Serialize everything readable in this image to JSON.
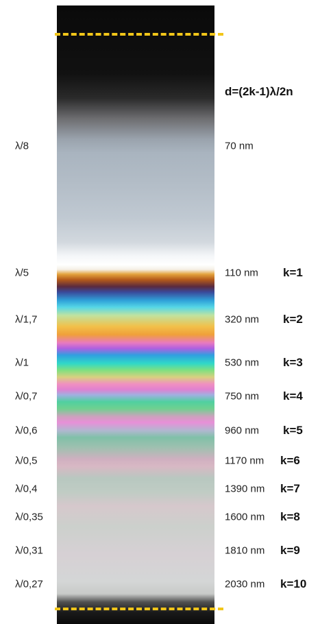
{
  "formula": "d=(2k-1)λ/2n",
  "rows": [
    {
      "ratio": "λ/8",
      "thickness": "70 nm"
    },
    {
      "ratio": "λ/5",
      "thickness": "110 nm",
      "order": "k=1"
    },
    {
      "ratio": "λ/1,7",
      "thickness": "320 nm",
      "order": "k=2"
    },
    {
      "ratio": "λ/1",
      "thickness": "530 nm",
      "order": "k=3"
    },
    {
      "ratio": "λ/0,7",
      "thickness": "750 nm",
      "order": "k=4"
    },
    {
      "ratio": "λ/0,6",
      "thickness": "960 nm",
      "order": "k=5"
    },
    {
      "ratio": "λ/0,5",
      "thickness": "1170 nm",
      "order": "k=6"
    },
    {
      "ratio": "λ/0,4",
      "thickness": "1390 nm",
      "order": "k=7"
    },
    {
      "ratio": "λ/0,35",
      "thickness": "1600 nm",
      "order": "k=8"
    },
    {
      "ratio": "λ/0,31",
      "thickness": "1810 nm",
      "order": "k=9"
    },
    {
      "ratio": "λ/0,27",
      "thickness": "2030 nm",
      "order": "k=10"
    }
  ]
}
